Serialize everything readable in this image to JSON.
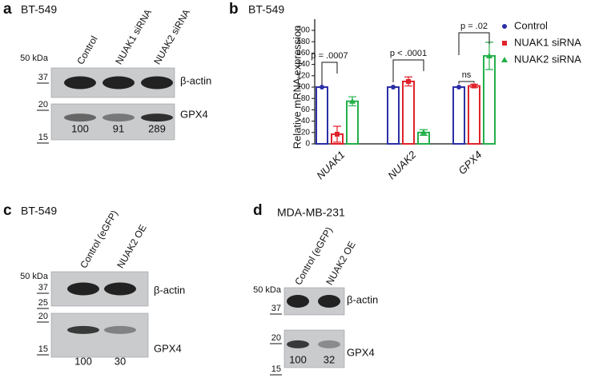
{
  "panels": {
    "a": {
      "letter": "a",
      "cell_line": "BT-549",
      "lanes": [
        "Control",
        "NUAK1 siRNA",
        "NUAK2 siRNA"
      ],
      "markers": [
        "50 kDa",
        "37",
        "20",
        "15"
      ],
      "proteins": [
        "β-actin",
        "GPX4"
      ],
      "quantification": [
        100,
        91,
        289
      ]
    },
    "c": {
      "letter": "c",
      "cell_line": "BT-549",
      "lanes": [
        "Control (eGFP)",
        "NUAK2 OE"
      ],
      "markers": [
        "50 kDa",
        "37",
        "25",
        "20",
        "15"
      ],
      "proteins": [
        "β-actin",
        "GPX4"
      ],
      "quantification": [
        100,
        30
      ]
    },
    "d": {
      "letter": "d",
      "cell_line": "MDA-MB-231",
      "lanes": [
        "Control (eGFP)",
        "NUAK2 OE"
      ],
      "markers": [
        "50 kDa",
        "37",
        "20",
        "15"
      ],
      "proteins": [
        "β-actin",
        "GPX4"
      ],
      "quantification": [
        100,
        32
      ]
    }
  },
  "chart_data": {
    "type": "bar",
    "letter": "b",
    "title": "BT-549",
    "y_label": "Relative mRNA expression",
    "categories": [
      "NUAK1",
      "NUAK2",
      "GPX4"
    ],
    "series": [
      {
        "name": "Control",
        "color": "#2b2fa6",
        "marker": "circle",
        "values": [
          100,
          100,
          100
        ],
        "errors": [
          0,
          0,
          0
        ]
      },
      {
        "name": "NUAK1 siRNA",
        "color": "#e0232b",
        "marker": "square",
        "values": [
          17,
          110,
          102
        ],
        "errors": [
          14,
          8,
          3
        ]
      },
      {
        "name": "NUAK2 siRNA",
        "color": "#23b04a",
        "marker": "triangle",
        "values": [
          75,
          20,
          155
        ],
        "errors": [
          8,
          5,
          24
        ]
      }
    ],
    "ylim": [
      0,
      200
    ],
    "yticks": [
      0,
      20,
      40,
      60,
      80,
      100,
      120,
      140,
      160,
      180,
      200
    ],
    "annotations": [
      "p = .0007",
      "p < .0001",
      "p = .02",
      "ns"
    ]
  }
}
